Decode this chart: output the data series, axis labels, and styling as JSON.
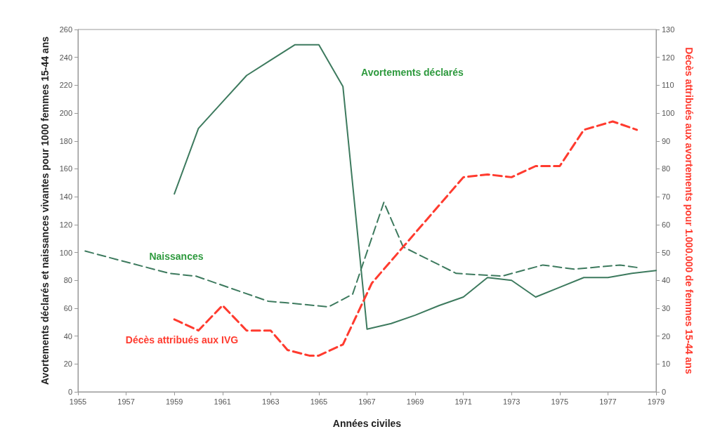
{
  "chart_data": {
    "type": "line",
    "xlabel": "Années civiles",
    "ylabel": "Avortements déclarés et naissances vivantes pour 1000 femmes 15-44 ans",
    "y2label": "Décès attribués aux avortements pour 1.000.000 de femmes 15-44 ans",
    "xlim": [
      1955,
      1979
    ],
    "xticks": [
      1955,
      1957,
      1959,
      1961,
      1963,
      1965,
      1967,
      1969,
      1971,
      1973,
      1975,
      1977,
      1979
    ],
    "ylim": [
      0,
      260
    ],
    "yticks": [
      0,
      20,
      40,
      60,
      80,
      100,
      120,
      140,
      160,
      180,
      200,
      220,
      240,
      260
    ],
    "y2lim": [
      0,
      130
    ],
    "y2ticks": [
      0,
      10,
      20,
      30,
      40,
      50,
      60,
      70,
      80,
      90,
      100,
      110,
      120,
      130
    ],
    "grid": false,
    "legend": false,
    "marker": "none",
    "series": [
      {
        "name": "Avortements déclarés",
        "color": "#3d7a5e",
        "line_style": "solid",
        "x": [
          1959,
          1960,
          1961,
          1962,
          1963,
          1964,
          1965,
          1966,
          1967,
          1968,
          1969,
          1970,
          1971,
          1972,
          1973,
          1974,
          1975,
          1976,
          1977,
          1978,
          1979
        ],
        "values": [
          142,
          189,
          208,
          227,
          238,
          249,
          249,
          219,
          45,
          49,
          55,
          62,
          68,
          82,
          80,
          68,
          75,
          82,
          82,
          85,
          87
        ]
      },
      {
        "name": "Naissances",
        "color": "#3d7a5e",
        "line_style": "dashed",
        "x": [
          1955.3,
          1956.6,
          1958.8,
          1959.9,
          1962.9,
          1963.6,
          1965.4,
          1966.4,
          1967.7,
          1968.5,
          1970.7,
          1972.6,
          1974.3,
          1975.6,
          1977.5,
          1978.3
        ],
        "values": [
          101,
          95,
          85,
          83,
          65,
          64,
          61,
          70,
          136,
          104,
          85,
          83,
          91,
          88,
          91,
          89
        ]
      },
      {
        "name": "Décès attribués aux IVG",
        "color": "#ff3b2f",
        "line_style": "dashed",
        "axis": "y2",
        "x": [
          1959,
          1960,
          1961,
          1962,
          1963,
          1963.7,
          1964.6,
          1965,
          1966,
          1967.2,
          1968.5,
          1971,
          1972,
          1973,
          1974,
          1975,
          1976,
          1977.2,
          1978.2
        ],
        "values": [
          26,
          22,
          31,
          22,
          22,
          15,
          13,
          13,
          17,
          39,
          52,
          77,
          78,
          77,
          81,
          81,
          94,
          97,
          94
        ]
      }
    ]
  }
}
